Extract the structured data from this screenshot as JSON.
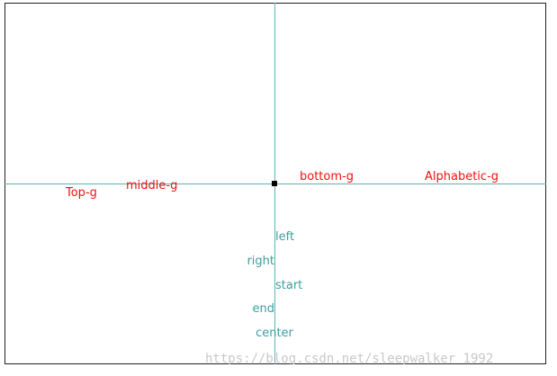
{
  "baseline_labels": [
    "Top-g",
    "middle-g",
    "bottom-g",
    "Alphabetic-g"
  ],
  "align_labels": [
    "left",
    "right",
    "start",
    "end",
    "center"
  ],
  "watermark": "https://blog.csdn.net/sleepwalker_1992"
}
